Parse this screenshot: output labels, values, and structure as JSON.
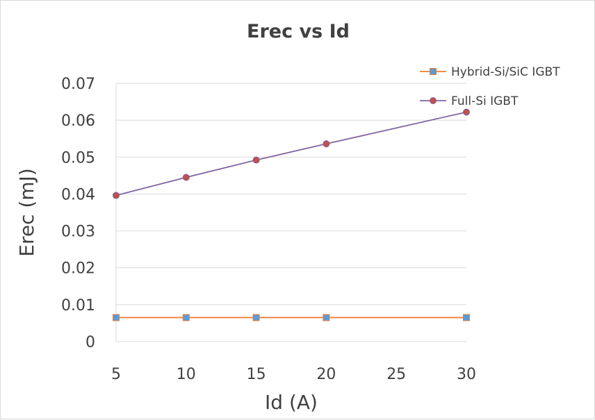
{
  "chart_data": {
    "type": "line",
    "title": "Erec vs Id",
    "xlabel": "Id (A)",
    "ylabel": "Erec (mJ)",
    "xlim": [
      5,
      30
    ],
    "ylim": [
      0,
      0.07
    ],
    "xticks": [
      5,
      10,
      15,
      20,
      25,
      30
    ],
    "yticks": [
      0,
      0.01,
      0.02,
      0.03,
      0.04,
      0.05,
      0.06,
      0.07
    ],
    "ytick_labels": [
      "0",
      "0.01",
      "0.02",
      "0.03",
      "0.04",
      "0.05",
      "0.06",
      "0.07"
    ],
    "grid": "horizontal",
    "legend_position": "top-right",
    "series": [
      {
        "name": "Hybrid-Si/SiC IGBT",
        "x": [
          5,
          10,
          15,
          20,
          30
        ],
        "y": [
          0.0065,
          0.0065,
          0.0065,
          0.0065,
          0.0065
        ],
        "line_color": "#ed7d31",
        "marker": "square",
        "marker_color": "#5b9bd5",
        "marker_edge": "#ed7d31"
      },
      {
        "name": "Full-Si IGBT",
        "x": [
          5,
          10,
          15,
          20,
          30
        ],
        "y": [
          0.0396,
          0.0445,
          0.0492,
          0.0536,
          0.0622
        ],
        "line_color": "#8064a2",
        "marker": "circle",
        "marker_color": "#c0504d",
        "marker_edge": "#8064a2"
      }
    ]
  }
}
